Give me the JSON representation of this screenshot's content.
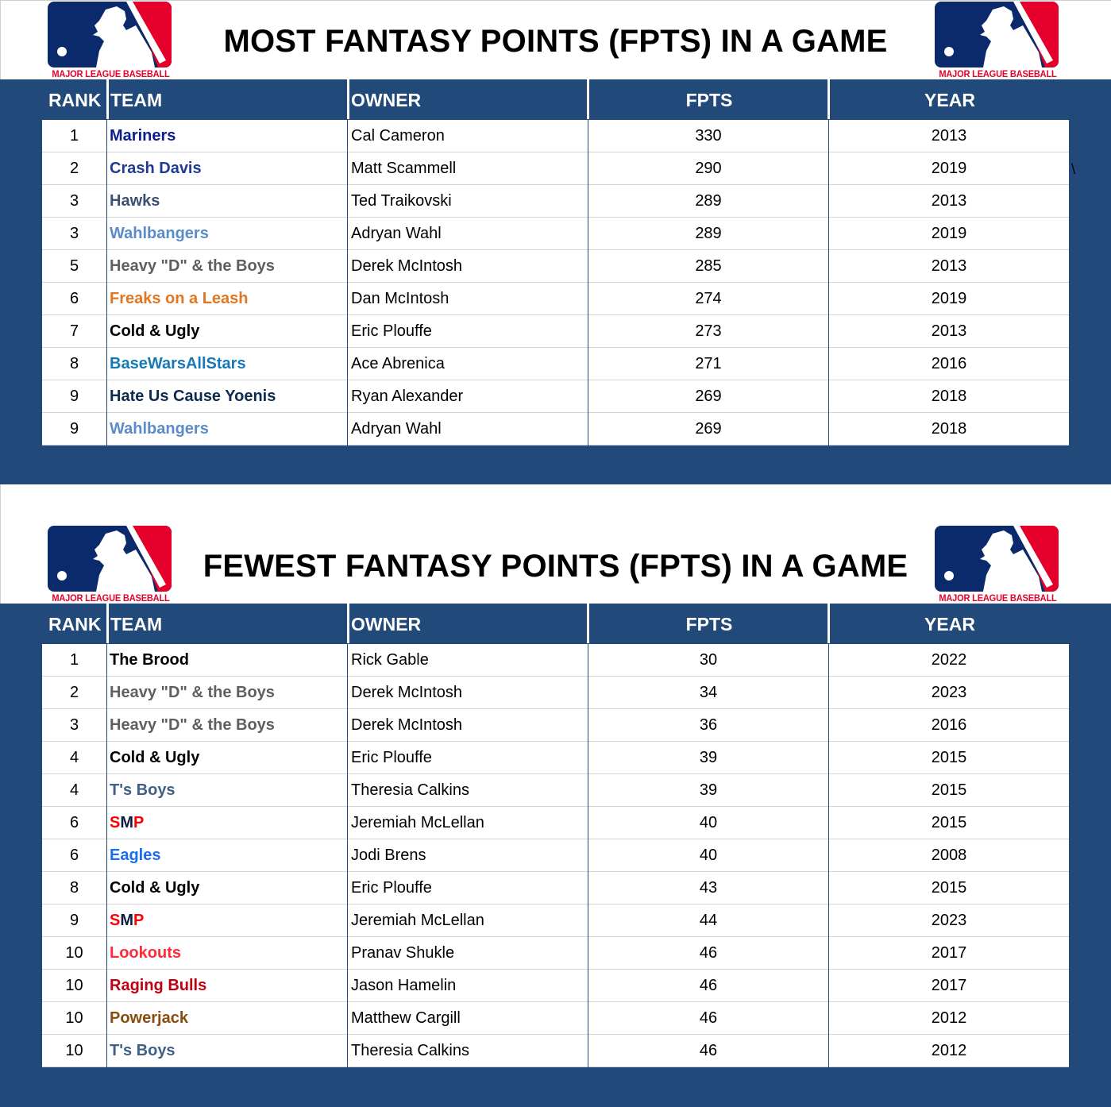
{
  "logo": {
    "text": "MAJOR LEAGUE BASEBALL",
    "colors": {
      "blue": "#0b2a6b",
      "red": "#e4002b",
      "white": "#ffffff"
    }
  },
  "colors": {
    "section_bg": "#214a7b",
    "header_text": "#ffffff",
    "row_bg": "#ffffff",
    "row_divider": "#d4d4d4"
  },
  "most": {
    "title": "MOST FANTASY POINTS (FPTS) IN A GAME",
    "columns": {
      "rank": "RANK",
      "team": "TEAM",
      "owner": "OWNER",
      "fpts": "FPTS",
      "year": "YEAR"
    },
    "rows": [
      {
        "rank": "1",
        "team": "Mariners",
        "team_color": "#0c1c8c",
        "owner": "Cal Cameron",
        "fpts": "330",
        "year": "2013"
      },
      {
        "rank": "2",
        "team": "Crash Davis",
        "team_color": "#1f3a93",
        "owner": "Matt Scammell",
        "fpts": "290",
        "year": "2019"
      },
      {
        "rank": "3",
        "team": "Hawks",
        "team_color": "#3b4f73",
        "owner": "Ted Traikovski",
        "fpts": "289",
        "year": "2013"
      },
      {
        "rank": "3",
        "team": "Wahlbangers",
        "team_color": "#5b8bc9",
        "owner": "Adryan Wahl",
        "fpts": "289",
        "year": "2019"
      },
      {
        "rank": "5",
        "team": "Heavy \"D\" & the Boys",
        "team_color": "#5f5f5f",
        "owner": "Derek McIntosh",
        "fpts": "285",
        "year": "2013"
      },
      {
        "rank": "6",
        "team": "Freaks on a Leash",
        "team_color": "#e0761f",
        "owner": "Dan McIntosh",
        "fpts": "274",
        "year": "2019"
      },
      {
        "rank": "7",
        "team": "Cold & Ugly",
        "team_color": "#000000",
        "owner": "Eric Plouffe",
        "fpts": "273",
        "year": "2013"
      },
      {
        "rank": "8",
        "team": "BaseWarsAllStars",
        "team_color": "#1679b5",
        "owner": "Ace Abrenica",
        "fpts": "271",
        "year": "2016"
      },
      {
        "rank": "9",
        "team": "Hate Us Cause Yoenis",
        "team_color": "#0d2b4e",
        "owner": "Ryan Alexander",
        "fpts": "269",
        "year": "2018"
      },
      {
        "rank": "9",
        "team": "Wahlbangers",
        "team_color": "#5b8bc9",
        "owner": "Adryan Wahl",
        "fpts": "269",
        "year": "2018"
      }
    ],
    "stray_char": "\\"
  },
  "fewest": {
    "title": "FEWEST FANTASY POINTS (FPTS) IN A GAME",
    "columns": {
      "rank": "RANK",
      "team": "TEAM",
      "owner": "OWNER",
      "fpts": "FPTS",
      "year": "YEAR"
    },
    "rows": [
      {
        "rank": "1",
        "team": "The Brood",
        "team_color": "#000000",
        "owner": "Rick Gable",
        "fpts": "30",
        "year": "2022"
      },
      {
        "rank": "2",
        "team": "Heavy \"D\" & the Boys",
        "team_color": "#5f5f5f",
        "owner": "Derek McIntosh",
        "fpts": "34",
        "year": "2023"
      },
      {
        "rank": "3",
        "team": "Heavy \"D\" & the Boys",
        "team_color": "#5f5f5f",
        "owner": "Derek McIntosh",
        "fpts": "36",
        "year": "2016"
      },
      {
        "rank": "4",
        "team": "Cold & Ugly",
        "team_color": "#000000",
        "owner": "Eric Plouffe",
        "fpts": "39",
        "year": "2015"
      },
      {
        "rank": "4",
        "team": "T's Boys",
        "team_color": "#3e5f86",
        "owner": "Theresia Calkins",
        "fpts": "39",
        "year": "2015"
      },
      {
        "rank": "6",
        "team": "SMP",
        "team_parts": [
          {
            "t": "S",
            "c": "#ff0000"
          },
          {
            "t": "M",
            "c": "#0d1b3e"
          },
          {
            "t": "P",
            "c": "#ff0000"
          }
        ],
        "owner": "Jeremiah McLellan",
        "fpts": "40",
        "year": "2015"
      },
      {
        "rank": "6",
        "team": "Eagles",
        "team_color": "#1a6cf0",
        "owner": "Jodi Brens",
        "fpts": "40",
        "year": "2008"
      },
      {
        "rank": "8",
        "team": "Cold & Ugly",
        "team_color": "#000000",
        "owner": "Eric Plouffe",
        "fpts": "43",
        "year": "2015"
      },
      {
        "rank": "9",
        "team": "SMP",
        "team_parts": [
          {
            "t": "S",
            "c": "#ff0000"
          },
          {
            "t": "M",
            "c": "#0d1b3e"
          },
          {
            "t": "P",
            "c": "#ff0000"
          }
        ],
        "owner": "Jeremiah McLellan",
        "fpts": "44",
        "year": "2023"
      },
      {
        "rank": "10",
        "team": "Lookouts",
        "team_color": "#ff2a3a",
        "owner": "Pranav Shukle",
        "fpts": "46",
        "year": "2017"
      },
      {
        "rank": "10",
        "team": "Raging Bulls",
        "team_color": "#c00010",
        "owner": "Jason Hamelin",
        "fpts": "46",
        "year": "2017"
      },
      {
        "rank": "10",
        "team": "Powerjack",
        "team_color": "#8a4b0f",
        "owner": "Matthew Cargill",
        "fpts": "46",
        "year": "2012"
      },
      {
        "rank": "10",
        "team": "T's Boys",
        "team_color": "#3e5f86",
        "owner": "Theresia Calkins",
        "fpts": "46",
        "year": "2012"
      }
    ]
  }
}
